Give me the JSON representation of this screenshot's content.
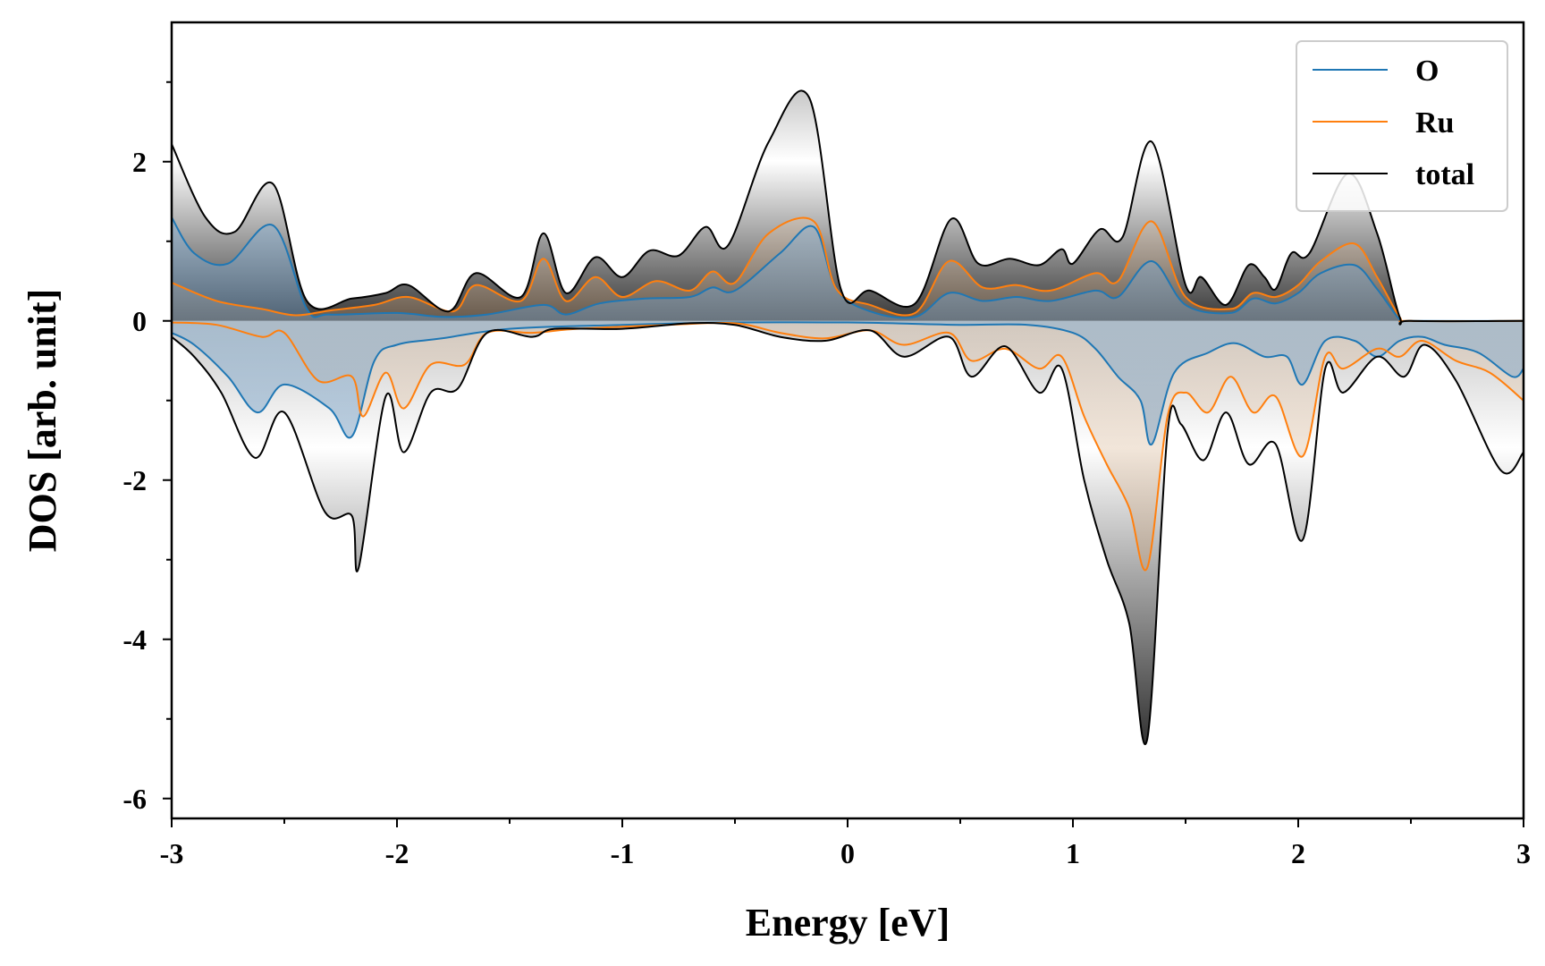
{
  "chart_data": {
    "type": "line",
    "title": "",
    "xlabel": "Energy [eV]",
    "ylabel": "DOS [arb. unit]",
    "xlim": [
      -3,
      3
    ],
    "ylim": [
      -6.25,
      3.75
    ],
    "xticks": [
      -3,
      -2,
      -1,
      0,
      1,
      2,
      3
    ],
    "xtick_labels": [
      "-3",
      "-2",
      "-1",
      "0",
      "1",
      "2",
      "3"
    ],
    "yticks": [
      -6,
      -4,
      -2,
      0,
      2
    ],
    "ytick_labels": [
      "-6",
      "-4",
      "-2",
      "0",
      "2"
    ],
    "legend_position": "top-right",
    "series": [
      {
        "name": "O",
        "color": "#1f77b4",
        "up": [
          [
            -3,
            1.3
          ],
          [
            -2.9,
            0.85
          ],
          [
            -2.75,
            0.72
          ],
          [
            -2.55,
            1.2
          ],
          [
            -2.4,
            0.15
          ],
          [
            -2.3,
            0.08
          ],
          [
            -2,
            0.1
          ],
          [
            -1.8,
            0.05
          ],
          [
            -1.6,
            0.08
          ],
          [
            -1.35,
            0.2
          ],
          [
            -1.25,
            0.08
          ],
          [
            -1.1,
            0.22
          ],
          [
            -0.9,
            0.28
          ],
          [
            -0.7,
            0.3
          ],
          [
            -0.6,
            0.42
          ],
          [
            -0.5,
            0.38
          ],
          [
            -0.3,
            0.85
          ],
          [
            -0.15,
            1.18
          ],
          [
            -0.05,
            0.4
          ],
          [
            0.1,
            0.12
          ],
          [
            0.3,
            0.05
          ],
          [
            0.45,
            0.35
          ],
          [
            0.6,
            0.25
          ],
          [
            0.75,
            0.3
          ],
          [
            0.9,
            0.25
          ],
          [
            1.1,
            0.38
          ],
          [
            1.2,
            0.3
          ],
          [
            1.35,
            0.75
          ],
          [
            1.5,
            0.2
          ],
          [
            1.7,
            0.1
          ],
          [
            1.8,
            0.28
          ],
          [
            1.9,
            0.22
          ],
          [
            2,
            0.35
          ],
          [
            2.1,
            0.6
          ],
          [
            2.25,
            0.7
          ],
          [
            2.35,
            0.4
          ],
          [
            2.45,
            0.02
          ],
          [
            2.5,
            0
          ],
          [
            3,
            0
          ]
        ],
        "down": [
          [
            -3,
            -0.15
          ],
          [
            -2.9,
            -0.3
          ],
          [
            -2.75,
            -0.7
          ],
          [
            -2.62,
            -1.15
          ],
          [
            -2.5,
            -0.8
          ],
          [
            -2.3,
            -1.1
          ],
          [
            -2.2,
            -1.45
          ],
          [
            -2.1,
            -0.5
          ],
          [
            -2,
            -0.3
          ],
          [
            -1.8,
            -0.22
          ],
          [
            -1.5,
            -0.1
          ],
          [
            -1,
            -0.05
          ],
          [
            -0.5,
            -0.02
          ],
          [
            0,
            -0.02
          ],
          [
            0.2,
            -0.03
          ],
          [
            0.5,
            -0.05
          ],
          [
            0.8,
            -0.05
          ],
          [
            1,
            -0.15
          ],
          [
            1.1,
            -0.35
          ],
          [
            1.2,
            -0.7
          ],
          [
            1.3,
            -1.0
          ],
          [
            1.35,
            -1.55
          ],
          [
            1.45,
            -0.65
          ],
          [
            1.6,
            -0.4
          ],
          [
            1.72,
            -0.28
          ],
          [
            1.85,
            -0.45
          ],
          [
            1.95,
            -0.45
          ],
          [
            2.02,
            -0.8
          ],
          [
            2.12,
            -0.25
          ],
          [
            2.25,
            -0.25
          ],
          [
            2.35,
            -0.45
          ],
          [
            2.45,
            -0.25
          ],
          [
            2.55,
            -0.2
          ],
          [
            2.65,
            -0.3
          ],
          [
            2.8,
            -0.4
          ],
          [
            2.95,
            -0.7
          ],
          [
            3,
            -0.6
          ]
        ]
      },
      {
        "name": "Ru",
        "color": "#ff7f0e",
        "up": [
          [
            -3,
            0.48
          ],
          [
            -2.8,
            0.25
          ],
          [
            -2.6,
            0.15
          ],
          [
            -2.45,
            0.07
          ],
          [
            -2.3,
            0.13
          ],
          [
            -2.1,
            0.2
          ],
          [
            -1.95,
            0.3
          ],
          [
            -1.75,
            0.12
          ],
          [
            -1.65,
            0.45
          ],
          [
            -1.45,
            0.25
          ],
          [
            -1.35,
            0.78
          ],
          [
            -1.25,
            0.25
          ],
          [
            -1.12,
            0.55
          ],
          [
            -1,
            0.3
          ],
          [
            -0.85,
            0.5
          ],
          [
            -0.7,
            0.38
          ],
          [
            -0.6,
            0.62
          ],
          [
            -0.5,
            0.48
          ],
          [
            -0.35,
            1.1
          ],
          [
            -0.15,
            1.25
          ],
          [
            -0.05,
            0.4
          ],
          [
            0.1,
            0.2
          ],
          [
            0.3,
            0.1
          ],
          [
            0.45,
            0.75
          ],
          [
            0.6,
            0.42
          ],
          [
            0.75,
            0.45
          ],
          [
            0.9,
            0.38
          ],
          [
            1.1,
            0.6
          ],
          [
            1.2,
            0.5
          ],
          [
            1.35,
            1.25
          ],
          [
            1.5,
            0.3
          ],
          [
            1.7,
            0.15
          ],
          [
            1.8,
            0.35
          ],
          [
            1.9,
            0.3
          ],
          [
            2,
            0.45
          ],
          [
            2.1,
            0.75
          ],
          [
            2.25,
            0.97
          ],
          [
            2.35,
            0.55
          ],
          [
            2.45,
            0.05
          ],
          [
            2.5,
            0
          ],
          [
            3,
            0
          ]
        ],
        "down": [
          [
            -3,
            -0.02
          ],
          [
            -2.8,
            -0.05
          ],
          [
            -2.6,
            -0.2
          ],
          [
            -2.5,
            -0.15
          ],
          [
            -2.35,
            -0.75
          ],
          [
            -2.2,
            -0.7
          ],
          [
            -2.15,
            -1.2
          ],
          [
            -2.05,
            -0.65
          ],
          [
            -1.97,
            -1.1
          ],
          [
            -1.85,
            -0.55
          ],
          [
            -1.7,
            -0.55
          ],
          [
            -1.6,
            -0.15
          ],
          [
            -1.4,
            -0.15
          ],
          [
            -1.2,
            -0.1
          ],
          [
            -0.8,
            -0.05
          ],
          [
            -0.5,
            -0.03
          ],
          [
            -0.3,
            -0.15
          ],
          [
            -0.1,
            -0.22
          ],
          [
            0.1,
            -0.12
          ],
          [
            0.25,
            -0.3
          ],
          [
            0.45,
            -0.15
          ],
          [
            0.55,
            -0.5
          ],
          [
            0.7,
            -0.35
          ],
          [
            0.85,
            -0.6
          ],
          [
            0.95,
            -0.45
          ],
          [
            1.05,
            -1.2
          ],
          [
            1.15,
            -1.8
          ],
          [
            1.25,
            -2.35
          ],
          [
            1.33,
            -3.1
          ],
          [
            1.42,
            -1.2
          ],
          [
            1.5,
            -0.9
          ],
          [
            1.6,
            -1.15
          ],
          [
            1.7,
            -0.7
          ],
          [
            1.8,
            -1.15
          ],
          [
            1.9,
            -0.95
          ],
          [
            2.02,
            -1.7
          ],
          [
            2.12,
            -0.45
          ],
          [
            2.2,
            -0.6
          ],
          [
            2.35,
            -0.35
          ],
          [
            2.45,
            -0.45
          ],
          [
            2.55,
            -0.25
          ],
          [
            2.7,
            -0.5
          ],
          [
            2.85,
            -0.65
          ],
          [
            3,
            -1.0
          ]
        ]
      },
      {
        "name": "total",
        "color": "#000000",
        "up": [
          [
            -3,
            2.22
          ],
          [
            -2.85,
            1.3
          ],
          [
            -2.72,
            1.12
          ],
          [
            -2.55,
            1.72
          ],
          [
            -2.4,
            0.25
          ],
          [
            -2.2,
            0.28
          ],
          [
            -2.05,
            0.35
          ],
          [
            -1.95,
            0.45
          ],
          [
            -1.77,
            0.12
          ],
          [
            -1.65,
            0.6
          ],
          [
            -1.45,
            0.3
          ],
          [
            -1.35,
            1.1
          ],
          [
            -1.25,
            0.35
          ],
          [
            -1.12,
            0.8
          ],
          [
            -1,
            0.55
          ],
          [
            -0.88,
            0.88
          ],
          [
            -0.75,
            0.82
          ],
          [
            -0.63,
            1.18
          ],
          [
            -0.53,
            0.95
          ],
          [
            -0.35,
            2.25
          ],
          [
            -0.17,
            2.8
          ],
          [
            -0.03,
            0.4
          ],
          [
            0.1,
            0.38
          ],
          [
            0.3,
            0.22
          ],
          [
            0.46,
            1.28
          ],
          [
            0.58,
            0.72
          ],
          [
            0.72,
            0.78
          ],
          [
            0.85,
            0.7
          ],
          [
            0.95,
            0.9
          ],
          [
            1,
            0.72
          ],
          [
            1.12,
            1.15
          ],
          [
            1.22,
            1.05
          ],
          [
            1.35,
            2.25
          ],
          [
            1.5,
            0.45
          ],
          [
            1.57,
            0.55
          ],
          [
            1.68,
            0.2
          ],
          [
            1.78,
            0.7
          ],
          [
            1.85,
            0.55
          ],
          [
            1.9,
            0.4
          ],
          [
            1.97,
            0.85
          ],
          [
            2.05,
            0.85
          ],
          [
            2.22,
            1.85
          ],
          [
            2.35,
            1.1
          ],
          [
            2.45,
            0.05
          ],
          [
            2.5,
            0
          ],
          [
            3,
            0
          ]
        ],
        "down": [
          [
            -3,
            -0.2
          ],
          [
            -2.9,
            -0.45
          ],
          [
            -2.78,
            -0.9
          ],
          [
            -2.63,
            -1.72
          ],
          [
            -2.5,
            -1.15
          ],
          [
            -2.32,
            -2.4
          ],
          [
            -2.2,
            -2.45
          ],
          [
            -2.17,
            -3.1
          ],
          [
            -2.05,
            -0.95
          ],
          [
            -1.97,
            -1.65
          ],
          [
            -1.85,
            -0.9
          ],
          [
            -1.73,
            -0.85
          ],
          [
            -1.6,
            -0.15
          ],
          [
            -1.4,
            -0.2
          ],
          [
            -1.3,
            -0.1
          ],
          [
            -1,
            -0.1
          ],
          [
            -0.7,
            -0.03
          ],
          [
            -0.5,
            -0.05
          ],
          [
            -0.3,
            -0.2
          ],
          [
            -0.1,
            -0.25
          ],
          [
            0.1,
            -0.12
          ],
          [
            0.25,
            -0.45
          ],
          [
            0.45,
            -0.2
          ],
          [
            0.55,
            -0.7
          ],
          [
            0.7,
            -0.32
          ],
          [
            0.85,
            -0.9
          ],
          [
            0.95,
            -0.6
          ],
          [
            1.05,
            -2.0
          ],
          [
            1.15,
            -3.0
          ],
          [
            1.25,
            -3.8
          ],
          [
            1.33,
            -5.25
          ],
          [
            1.42,
            -1.4
          ],
          [
            1.48,
            -1.3
          ],
          [
            1.58,
            -1.75
          ],
          [
            1.68,
            -1.15
          ],
          [
            1.78,
            -1.8
          ],
          [
            1.9,
            -1.55
          ],
          [
            2.02,
            -2.75
          ],
          [
            2.12,
            -0.6
          ],
          [
            2.2,
            -0.9
          ],
          [
            2.35,
            -0.45
          ],
          [
            2.47,
            -0.7
          ],
          [
            2.56,
            -0.3
          ],
          [
            2.7,
            -0.75
          ],
          [
            2.9,
            -1.88
          ],
          [
            3,
            -1.65
          ]
        ]
      }
    ]
  }
}
